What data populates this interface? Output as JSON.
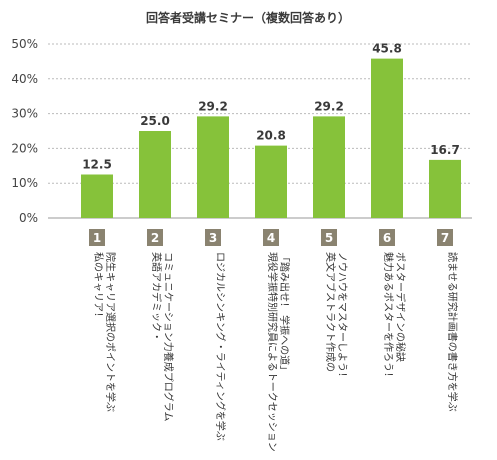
{
  "chart_data": {
    "type": "bar",
    "title": "回答者受講セミナー（複数回答あり）",
    "ylim": [
      0,
      50
    ],
    "yticks": [
      "0%",
      "10%",
      "20%",
      "30%",
      "40%",
      "50%"
    ],
    "grid": true,
    "bar_color": "#86c23a",
    "number_box_color": "#8a8370",
    "categories": [
      {
        "num": "1",
        "lines": [
          "私のキャリア！",
          "院生キャリア選択のポイントを学ぶ"
        ]
      },
      {
        "num": "2",
        "lines": [
          "英語アカデミック・",
          "コミュニケーション力養成プログラム"
        ]
      },
      {
        "num": "3",
        "lines": [
          "ロジカルシンキング・ライティングを学ぶ"
        ]
      },
      {
        "num": "4",
        "lines": [
          "現役学振特別研究員によるトークセッション",
          "「踏み出せ！ 学振への道」"
        ]
      },
      {
        "num": "5",
        "lines": [
          "英文アブストラクト作成の",
          "ノウハウをマスターしよう！"
        ]
      },
      {
        "num": "6",
        "lines": [
          "魅力あるポスターを作ろう！",
          "ポスターデザインの秘訣"
        ]
      },
      {
        "num": "7",
        "lines": [
          "読ませる研究計画書の書き方を学ぶ"
        ]
      }
    ],
    "values": [
      12.5,
      25.0,
      29.2,
      20.8,
      29.2,
      45.8,
      16.7
    ],
    "value_labels": [
      "12.5",
      "25.0",
      "29.2",
      "20.8",
      "29.2",
      "45.8",
      "16.7"
    ]
  }
}
